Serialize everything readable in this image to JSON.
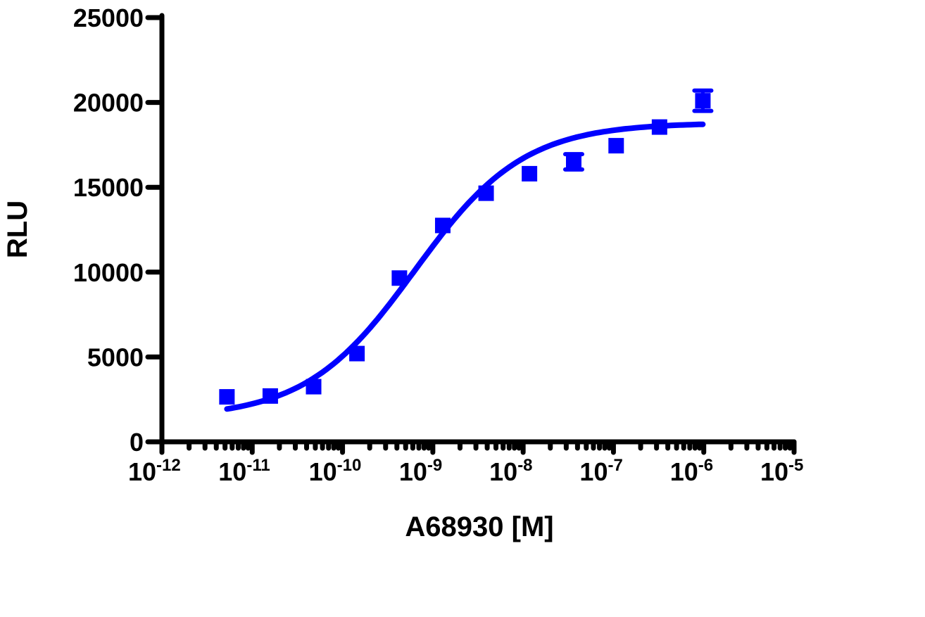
{
  "chart_data": {
    "type": "scatter",
    "title": "",
    "xlabel": "A68930 [M]",
    "ylabel": "RLU",
    "x_scale": "log10",
    "xlim_log10": [
      -12,
      -5
    ],
    "ylim": [
      0,
      25000
    ],
    "grid": false,
    "legend": null,
    "x_tick_labels": [
      {
        "base": "10",
        "exp": "-12",
        "log": -12
      },
      {
        "base": "10",
        "exp": "-11",
        "log": -11
      },
      {
        "base": "10",
        "exp": "-10",
        "log": -10
      },
      {
        "base": "10",
        "exp": "-9",
        "log": -9
      },
      {
        "base": "10",
        "exp": "-8",
        "log": -8
      },
      {
        "base": "10",
        "exp": "-7",
        "log": -7
      },
      {
        "base": "10",
        "exp": "-6",
        "log": -6
      },
      {
        "base": "10",
        "exp": "-5",
        "log": -5
      }
    ],
    "y_tick_labels": [
      "0",
      "5000",
      "10000",
      "15000",
      "20000",
      "25000"
    ],
    "y_ticks": [
      0,
      5000,
      10000,
      15000,
      20000,
      25000
    ],
    "series": [
      {
        "name": "A68930",
        "color": "#0000ff",
        "marker": "square",
        "points": [
          {
            "log_x": -11.28,
            "y": 2650,
            "err": 0
          },
          {
            "log_x": -10.8,
            "y": 2700,
            "err": 0
          },
          {
            "log_x": -10.32,
            "y": 3250,
            "err": 0
          },
          {
            "log_x": -9.84,
            "y": 5200,
            "err": 0
          },
          {
            "log_x": -9.37,
            "y": 9650,
            "err": 0
          },
          {
            "log_x": -8.89,
            "y": 12750,
            "err": 0
          },
          {
            "log_x": -8.41,
            "y": 14650,
            "err": 0
          },
          {
            "log_x": -7.93,
            "y": 15800,
            "err": 0
          },
          {
            "log_x": -7.44,
            "y": 16500,
            "err": 450
          },
          {
            "log_x": -6.97,
            "y": 17450,
            "err": 0
          },
          {
            "log_x": -6.49,
            "y": 18550,
            "err": 0
          },
          {
            "log_x": -6.01,
            "y": 20100,
            "err": 600
          }
        ],
        "fit": {
          "model": "sigmoidal dose-response",
          "bottom": 1400,
          "top": 18800,
          "log_ec50": -9.2,
          "hill": 0.72,
          "log_x_range": [
            -11.28,
            -6.01
          ]
        }
      }
    ]
  }
}
